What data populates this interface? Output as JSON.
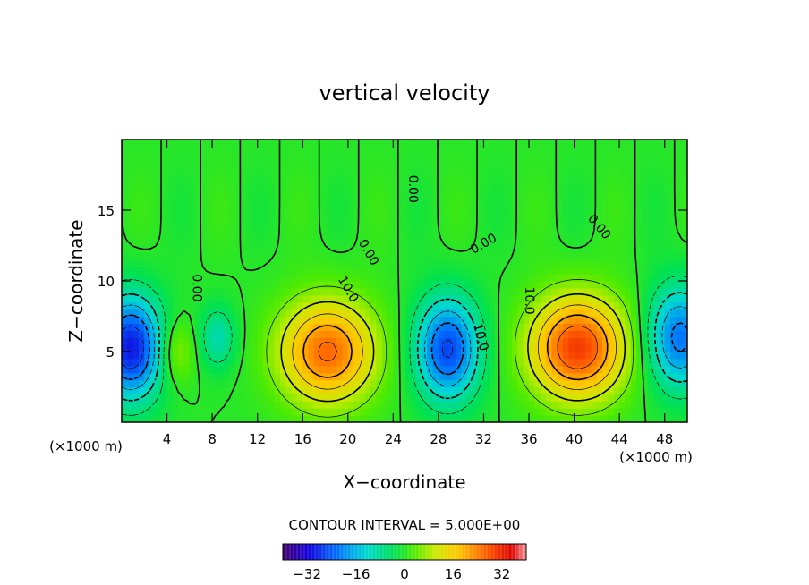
{
  "chart_data": {
    "type": "heatmap",
    "title": "vertical velocity",
    "xlabel": "X−coordinate",
    "ylabel": "Z−coordinate",
    "x_unit_left": "(×1000 m)",
    "x_unit_right": "(×1000 m)",
    "xlim": [
      0,
      50
    ],
    "ylim": [
      0,
      20
    ],
    "x_ticks": [
      4,
      8,
      12,
      16,
      20,
      24,
      28,
      32,
      36,
      40,
      44,
      48
    ],
    "y_ticks": [
      5,
      10,
      15
    ],
    "contour_interval_text": "CONTOUR INTERVAL = 5.000E+00",
    "contour_labels": [
      {
        "text": "0.00",
        "x": 25.7,
        "y": 16.5,
        "rot": 90
      },
      {
        "text": "0.00",
        "x": 21.8,
        "y": 12.0,
        "rot": 60
      },
      {
        "text": "0.00",
        "x": 32.0,
        "y": 12.6,
        "rot": -30
      },
      {
        "text": "0.00",
        "x": 42.2,
        "y": 13.8,
        "rot": 50
      },
      {
        "text": "0.00",
        "x": 6.6,
        "y": 9.5,
        "rot": 90
      },
      {
        "text": "10.0",
        "x": 20.0,
        "y": 9.4,
        "rot": 60
      },
      {
        "text": "10.0",
        "x": 31.7,
        "y": 6.0,
        "rot": 75
      },
      {
        "text": "10.0",
        "x": 36.0,
        "y": 8.6,
        "rot": 90
      }
    ],
    "colorbar": {
      "min": -40,
      "max": 40,
      "ticks": [
        "−32",
        "−16",
        "0",
        "16",
        "32"
      ],
      "tick_values": [
        -32,
        -16,
        0,
        16,
        32
      ]
    },
    "features": [
      {
        "kind": "updraft",
        "x": 18.2,
        "z": 5.0,
        "peak": 26
      },
      {
        "kind": "updraft",
        "x": 40.3,
        "z": 5.3,
        "peak": 30
      },
      {
        "kind": "downdraft",
        "x": 28.8,
        "z": 5.2,
        "peak": -26
      },
      {
        "kind": "downdraft",
        "x": 0.8,
        "z": 5.3,
        "peak": -30
      },
      {
        "kind": "downdraft",
        "x": 49.3,
        "z": 6.0,
        "peak": -22
      },
      {
        "kind": "updraft",
        "x": 4.8,
        "z": 5.0,
        "peak": 8
      },
      {
        "kind": "downdraft",
        "x": 8.5,
        "z": 6.0,
        "peak": -10
      }
    ]
  }
}
